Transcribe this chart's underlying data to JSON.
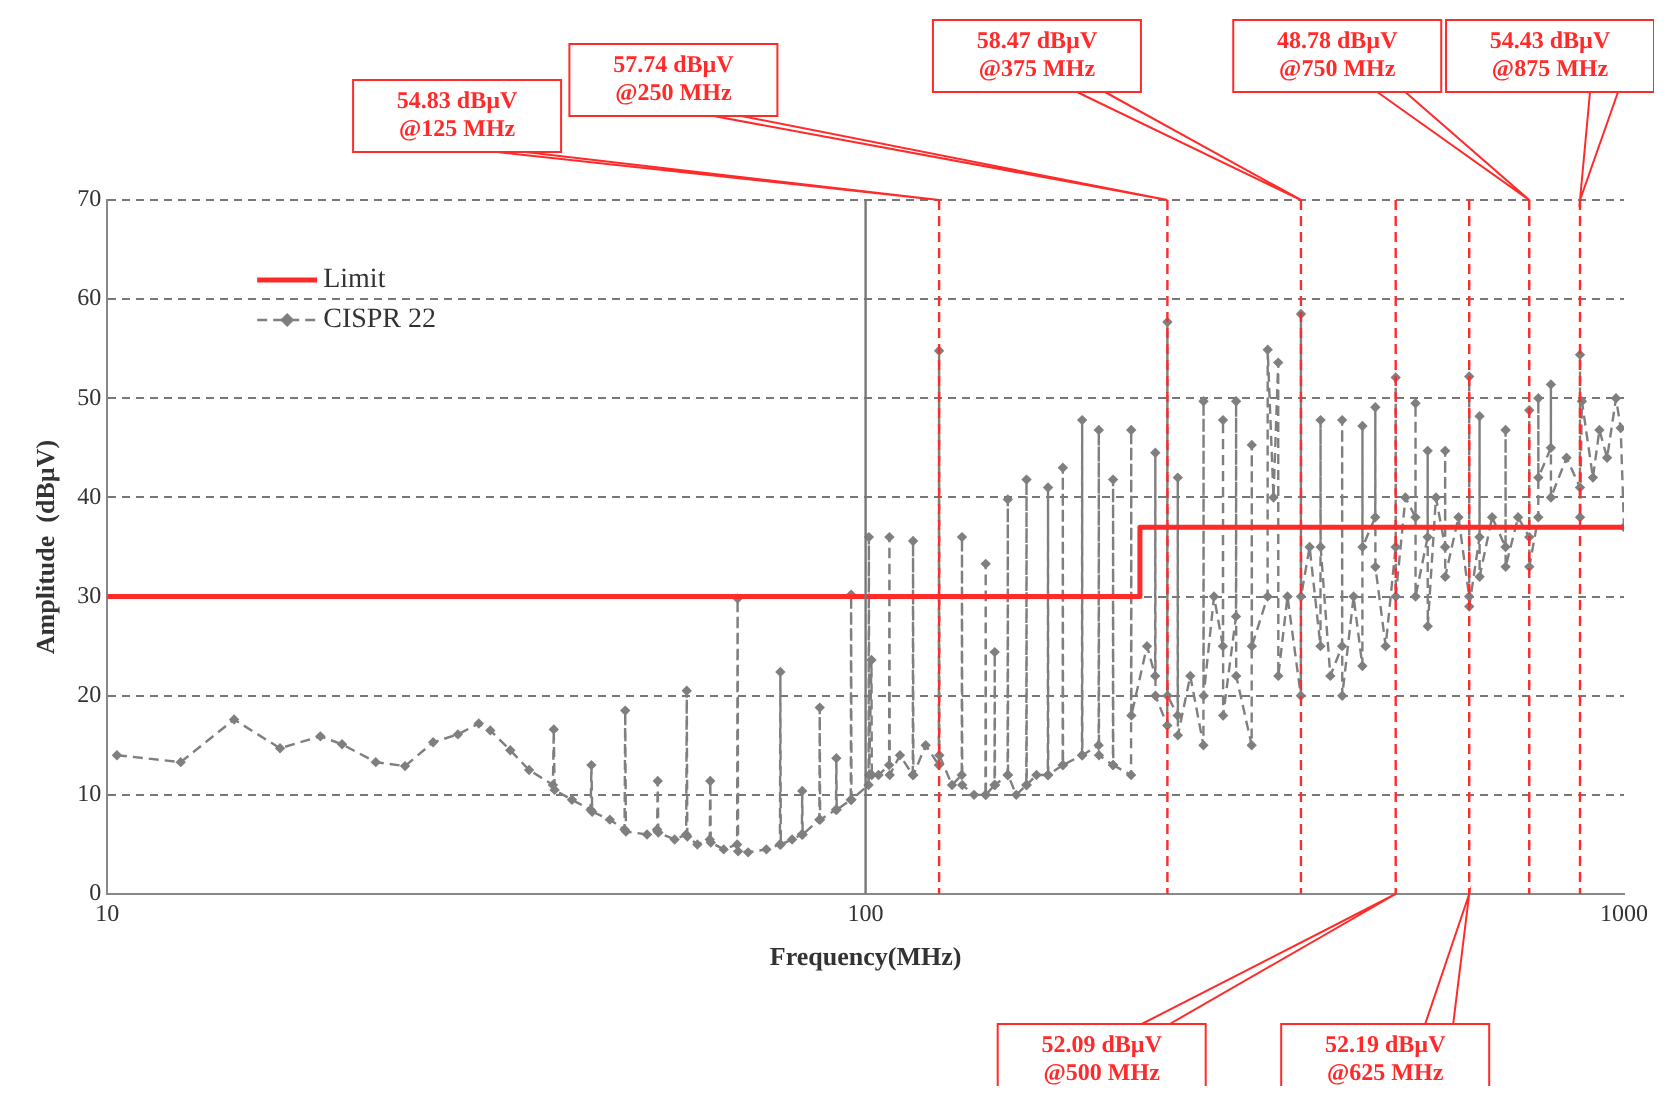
{
  "chart_data": {
    "type": "line",
    "xlabel": "Frequency(MHz)",
    "ylabel": "Amplitude  (dBµV)",
    "log": "x",
    "xlim": [
      10,
      1000
    ],
    "xticks": [
      10,
      100,
      1000
    ],
    "ylim": [
      0,
      70
    ],
    "yticks": [
      0,
      10,
      20,
      30,
      40,
      50,
      60,
      70
    ],
    "grid": "y",
    "legend": "top left",
    "series": [
      {
        "name": "Limit",
        "color": "#ff2a2a",
        "marker": "none",
        "line_style": "solid",
        "x": [
          10,
          230,
          230,
          1000
        ],
        "values": [
          30,
          30,
          37,
          37
        ]
      },
      {
        "name": "CISPR 22",
        "color": "#7f7f7f",
        "marker": "diamond",
        "line_style": "dashed",
        "x": [
          10.3,
          12.5,
          14.7,
          16.9,
          19.1,
          20.4,
          22.6,
          24.7,
          26.9,
          29,
          30.9,
          32,
          34,
          36,
          38.7,
          38.8,
          38.9,
          41,
          43.4,
          43.5,
          43.6,
          46,
          48.1,
          48.2,
          48.3,
          51.5,
          53.1,
          53.2,
          53.3,
          56,
          58,
          58.1,
          58.2,
          60,
          62.3,
          62.4,
          62.5,
          65,
          67.7,
          67.8,
          67.9,
          70,
          74,
          77.1,
          77.2,
          77.3,
          80,
          82.4,
          82.5,
          82.6,
          86.9,
          87,
          87.1,
          91.4,
          91.5,
          91.6,
          95.6,
          95.7,
          95.8,
          100.9,
          101,
          101.1,
          101.8,
          101.9,
          104,
          107.4,
          107.5,
          107.6,
          111,
          115.4,
          115.5,
          115.6,
          120,
          124.9,
          125,
          125.1,
          130,
          133.9,
          134,
          134.1,
          139,
          143.9,
          144,
          144.1,
          147.9,
          148,
          148.1,
          153.9,
          154,
          154.1,
          158,
          162.9,
          163,
          163.1,
          168,
          173.9,
          174,
          174.1,
          181.9,
          182,
          182.1,
          192.9,
          193,
          193.1,
          202.9,
          203,
          203.1,
          211.9,
          212,
          212.1,
          223.9,
          224,
          224.1,
          235,
          240.9,
          241,
          241.1,
          249.9,
          250,
          250.1,
          257.9,
          258,
          258.1,
          268,
          278.9,
          279,
          279.1,
          288,
          295.9,
          296,
          296.1,
          307.9,
          308,
          308.1,
          322.9,
          323,
          323.1,
          338.9,
          339,
          345,
          350,
          350.1,
          360,
          374.9,
          375,
          375.1,
          385,
          397.9,
          398,
          398.1,
          410,
          424.9,
          425,
          425.1,
          440,
          451.9,
          452,
          452.1,
          469.9,
          470,
          470.1,
          485,
          499.9,
          500,
          500.1,
          515,
          530.9,
          531,
          531.1,
          550.9,
          551,
          551.1,
          565,
          580.9,
          581,
          581.1,
          605,
          624.9,
          625,
          625.1,
          644.9,
          645,
          645.1,
          670,
          697.9,
          698,
          698.1,
          725,
          749.9,
          750,
          750.1,
          770.9,
          771,
          771.1,
          800.9,
          801,
          801.1,
          840,
          874.9,
          875,
          875.1,
          880,
          910,
          928,
          950,
          976,
          990,
          1000
        ],
        "values": [
          14,
          13.3,
          17.6,
          14.7,
          15.9,
          15.1,
          13.3,
          12.9,
          15.3,
          16.1,
          17.2,
          16.5,
          14.5,
          12.5,
          11,
          16.6,
          10.5,
          9.5,
          8.5,
          13,
          8.3,
          7.5,
          6.5,
          18.5,
          6.3,
          6,
          6.5,
          11.4,
          6.2,
          5.5,
          6,
          20.5,
          5.8,
          5,
          5.5,
          11.4,
          5.2,
          4.5,
          5,
          29.8,
          4.3,
          4.2,
          4.5,
          5,
          22.4,
          5,
          5.5,
          6,
          10.4,
          6,
          7.5,
          18.8,
          7.5,
          8.5,
          13.7,
          8.5,
          9.5,
          30.2,
          9.5,
          11,
          36,
          12,
          23.6,
          12,
          12,
          13,
          36,
          12,
          14,
          12,
          35.6,
          12,
          15,
          13,
          54.8,
          14,
          11,
          12,
          36,
          11,
          10,
          10,
          33.3,
          10,
          11,
          24.4,
          11,
          12,
          39.8,
          12,
          10,
          11,
          41.8,
          11,
          12,
          12,
          41,
          12,
          13,
          43,
          13,
          14,
          47.8,
          14,
          15,
          46.8,
          14,
          13,
          41.8,
          13,
          12,
          46.8,
          18,
          25,
          22,
          44.5,
          20,
          17,
          57.7,
          20,
          18,
          42,
          16,
          22,
          15,
          49.7,
          20,
          30,
          25,
          47.8,
          18,
          28,
          49.7,
          22,
          15,
          45.3,
          25,
          30,
          54.9,
          40,
          53.6,
          22,
          30,
          20,
          58.5,
          30,
          35,
          25,
          47.8,
          35,
          22,
          25,
          47.8,
          20,
          30,
          23,
          47.2,
          35,
          38,
          49.1,
          33,
          25,
          35,
          52.1,
          30,
          40,
          38,
          49.5,
          30,
          36,
          44.7,
          27,
          40,
          35,
          44.7,
          32,
          38,
          30,
          52.2,
          29,
          36,
          48.2,
          32,
          38,
          35,
          46.8,
          33,
          38,
          36,
          48.8,
          33,
          38,
          50,
          42,
          45,
          51.4,
          40,
          44,
          41,
          54.4,
          38,
          49.7,
          42,
          46.8,
          44,
          50,
          47,
          37
        ]
      }
    ],
    "ref_lines": [
      {
        "axis": "x",
        "value": 125,
        "color": "#ff2a2a",
        "line_style": "dashed",
        "label": "54.83 dBµV\n@125 MHz"
      },
      {
        "axis": "x",
        "value": 250,
        "color": "#ff2a2a",
        "line_style": "dashed",
        "label": "57.74 dBµV\n@250 MHz"
      },
      {
        "axis": "x",
        "value": 375,
        "color": "#ff2a2a",
        "line_style": "dashed",
        "label": "58.47 dBµV\n@375 MHz"
      },
      {
        "axis": "x",
        "value": 500,
        "color": "#ff2a2a",
        "line_style": "dashed",
        "label": "52.09 dBµV\n@500 MHz"
      },
      {
        "axis": "x",
        "value": 625,
        "color": "#ff2a2a",
        "line_style": "dashed",
        "label": "52.19 dBµV\n@625 MHz"
      },
      {
        "axis": "x",
        "value": 750,
        "color": "#ff2a2a",
        "line_style": "dashed",
        "label": "48.78 dBµV\n@750 MHz"
      },
      {
        "axis": "x",
        "value": 875,
        "color": "#ff2a2a",
        "line_style": "dashed",
        "label": "54.43 dBµV\n@875 MHz"
      },
      {
        "axis": "x",
        "value": 100,
        "color": "#777777",
        "line_style": "solid"
      }
    ]
  }
}
